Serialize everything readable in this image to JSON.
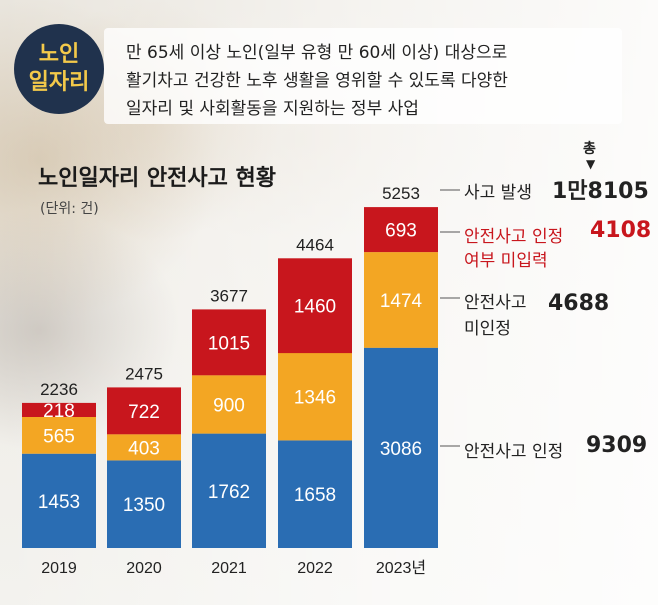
{
  "badge": {
    "line1": "노인",
    "line2": "일자리"
  },
  "definition": {
    "line1": "만 65세 이상 노인(일부 유형 만 60세 이상) 대상으로",
    "line2": "활기차고 건강한 노후 생활을 영위할 수 있도록 다양한",
    "line3": "일자리 및 사회활동을 지원하는 정부 사업"
  },
  "colors": {
    "blue": "#2a6db3",
    "orange": "#f3a623",
    "red": "#c8161d",
    "dark_text": "#222222",
    "red_text": "#c8161d"
  },
  "chart_data": {
    "type": "bar",
    "stacked": true,
    "title": "노인일자리 안전사고 현황",
    "unit_label": "(단위: 건)",
    "categories": [
      "2019",
      "2020",
      "2021",
      "2022",
      "2023년"
    ],
    "totals": [
      2236,
      2475,
      3677,
      4464,
      5253
    ],
    "series": [
      {
        "name": "안전사고 인정",
        "color": "#2a6db3",
        "values": [
          1453,
          1350,
          1762,
          1658,
          3086
        ]
      },
      {
        "name": "안전사고 미인정",
        "color": "#f3a623",
        "values": [
          565,
          403,
          900,
          1346,
          1474
        ]
      },
      {
        "name": "안전사고 인정 여부 미입력",
        "color": "#c8161d",
        "values": [
          218,
          722,
          1015,
          1460,
          693
        ]
      }
    ],
    "grid": false
  },
  "annotations": {
    "total_marker": "총",
    "accident_label": "사고 발생",
    "accident_total": "1만8105",
    "unentered_line1": "안전사고 인정",
    "unentered_line2": "여부 미입력",
    "unentered_total": "4108",
    "unrecognized_line1": "안전사고",
    "unrecognized_line2": "미인정",
    "unrecognized_total": "4688",
    "recognized_label": "안전사고 인정",
    "recognized_total": "9309"
  }
}
